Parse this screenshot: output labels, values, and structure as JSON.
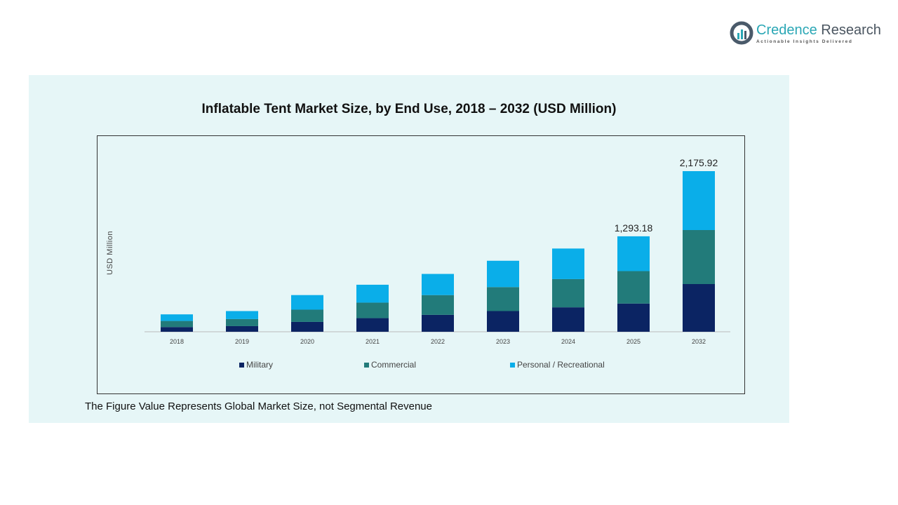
{
  "logo": {
    "name_part1": "Credence",
    "name_part2": "Research",
    "tagline": "Actionable Insights Delivered"
  },
  "colors": {
    "Military": "#0b2463",
    "Commercial": "#227b7a",
    "Personal / Recreational": "#0aaee9",
    "background": "#e6f6f7"
  },
  "note": "The Figure Value Represents Global Market Size, not Segmental Revenue",
  "chart_data": {
    "type": "bar",
    "stacked": true,
    "title": "Inflatable Tent Market Size, by End Use, 2018 – 2032 (USD Million)",
    "xlabel": "",
    "ylabel": "USD Million",
    "grid": false,
    "legend_placement": "bottom",
    "categories": [
      "2018",
      "2019",
      "2020",
      "2021",
      "2022",
      "2023",
      "2024",
      "2025",
      "2032"
    ],
    "series": [
      {
        "name": "Military",
        "values": [
          63.7,
          76.4,
          133.8,
          184.7,
          229.3,
          280.3,
          331.2,
          382.2,
          646.1
        ]
      },
      {
        "name": "Commercial",
        "values": [
          82.8,
          95.6,
          165.6,
          210.2,
          267.5,
          324.9,
          382.2,
          439.5,
          731.7
        ]
      },
      {
        "name": "Personal / Recreational",
        "values": [
          89.2,
          108.3,
          197.5,
          242.1,
          286.7,
          356.7,
          414.1,
          471.4,
          798.1
        ]
      }
    ],
    "annotations": [
      {
        "category": "2025",
        "text": "1,293.18"
      },
      {
        "category": "2032",
        "text": "2,175.92"
      }
    ],
    "ylim": [
      0,
      2175.92
    ]
  }
}
